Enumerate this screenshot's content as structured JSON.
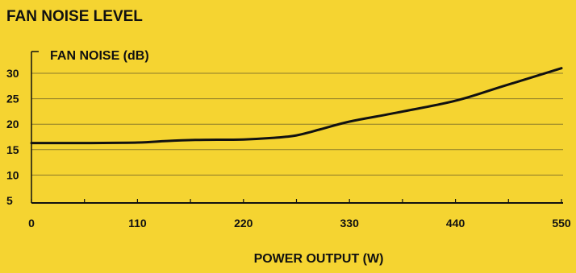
{
  "chart_data": {
    "type": "line",
    "title": "FAN NOISE LEVEL",
    "ylabel": "FAN NOISE (dB)",
    "xlabel": "POWER OUTPUT (W)",
    "xlim": [
      0,
      550
    ],
    "ylim": [
      5,
      30
    ],
    "xticks": [
      0,
      110,
      220,
      330,
      440,
      550
    ],
    "yticks": [
      5,
      10,
      15,
      20,
      25,
      30
    ],
    "grid": "horizontal",
    "colors": {
      "background": "#f5d431",
      "line": "#111111",
      "grid": "#8a7a2a"
    },
    "series": [
      {
        "x": [
          0,
          50,
          110,
          140,
          170,
          220,
          250,
          275,
          300,
          330,
          380,
          440,
          490,
          550
        ],
        "values": [
          16.3,
          16.3,
          16.4,
          16.7,
          16.9,
          17.0,
          17.3,
          17.8,
          19.0,
          20.5,
          22.3,
          24.6,
          27.5,
          31.0
        ]
      }
    ]
  }
}
